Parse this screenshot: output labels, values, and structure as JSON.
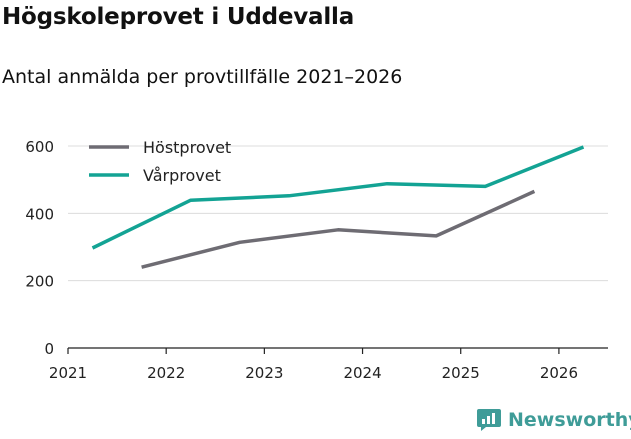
{
  "title": "Högskoleprovet i Uddevalla",
  "subtitle": "Antal anmälda per provtillfälle 2021–2026",
  "brand": {
    "name": "Newsworthy",
    "color": "#3f9c98"
  },
  "chart_data": {
    "type": "line",
    "title": "Högskoleprovet i Uddevalla",
    "subtitle": "Antal anmälda per provtillfälle 2021–2026",
    "xlabel": "",
    "ylabel": "",
    "xlim": [
      2021,
      2026.5
    ],
    "ylim": [
      0,
      600
    ],
    "yticks": [
      0,
      200,
      400,
      600
    ],
    "xticks": [
      2021,
      2022,
      2023,
      2024,
      2025,
      2026
    ],
    "grid": "horizontal",
    "legend": "top-left",
    "series": [
      {
        "name": "Höstprovet",
        "color": "#6e6c73",
        "x": [
          2021.75,
          2022.75,
          2023.75,
          2024.75,
          2025.75
        ],
        "y": [
          240,
          314,
          351,
          333,
          465
        ]
      },
      {
        "name": "Vårprovet",
        "color": "#13a394",
        "x": [
          2021.25,
          2022.25,
          2023.25,
          2024.25,
          2025.25,
          2026.25
        ],
        "y": [
          297,
          439,
          452,
          488,
          480,
          597
        ]
      }
    ]
  }
}
